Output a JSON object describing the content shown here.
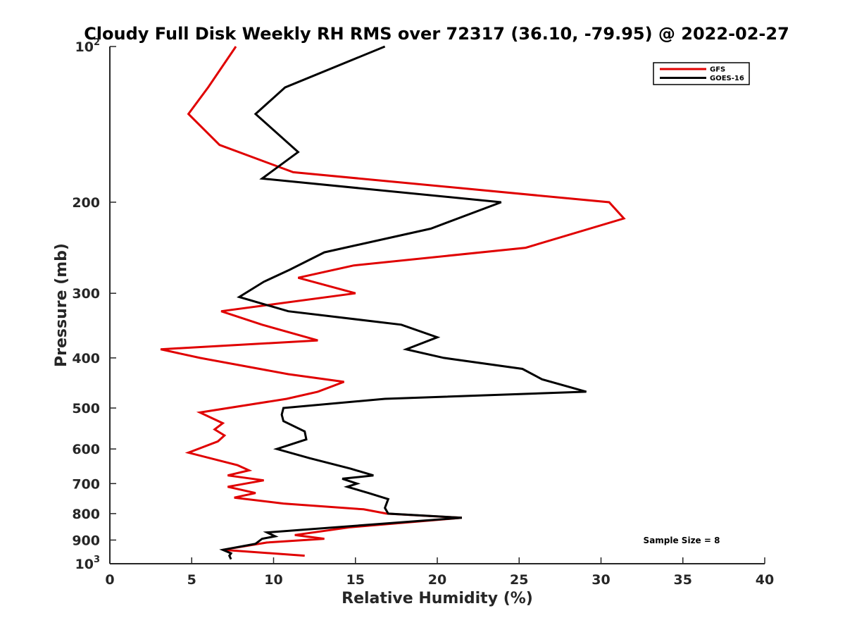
{
  "chart_data": {
    "type": "line",
    "title": "Cloudy Full Disk Weekly RH RMS over 72317 (36.10, -79.95) @ 2022-02-27",
    "xlabel": "Relative Humidity (%)",
    "ylabel": "Pressure (mb)",
    "xlim": [
      0,
      40
    ],
    "ylim": [
      100,
      1000
    ],
    "y_scale": "log",
    "y_reversed": true,
    "grid": false,
    "legend_position": "top-right",
    "x_ticks": [
      "0",
      "5",
      "10",
      "15",
      "20",
      "25",
      "30",
      "35",
      "40"
    ],
    "y_ticks": [
      {
        "value": 100,
        "base": "10",
        "exp": "2"
      },
      {
        "value": 200,
        "label": "200"
      },
      {
        "value": 300,
        "label": "300"
      },
      {
        "value": 400,
        "label": "400"
      },
      {
        "value": 500,
        "label": "500"
      },
      {
        "value": 600,
        "label": "600"
      },
      {
        "value": 700,
        "label": "700"
      },
      {
        "value": 800,
        "label": "800"
      },
      {
        "value": 900,
        "label": "900"
      },
      {
        "value": 1000,
        "base": "10",
        "exp": "3"
      }
    ],
    "annotation": "Sample Size = 8",
    "series": [
      {
        "name": "GFS",
        "color": "#e00000",
        "points": [
          [
            7.7,
            100
          ],
          [
            6.0,
            120
          ],
          [
            4.8,
            135
          ],
          [
            6.7,
            155
          ],
          [
            11.2,
            175
          ],
          [
            30.5,
            200
          ],
          [
            31.4,
            215
          ],
          [
            25.4,
            245
          ],
          [
            14.9,
            265
          ],
          [
            11.5,
            280
          ],
          [
            15.0,
            300
          ],
          [
            6.8,
            325
          ],
          [
            9.3,
            345
          ],
          [
            12.7,
            370
          ],
          [
            3.1,
            385
          ],
          [
            5.5,
            400
          ],
          [
            10.9,
            430
          ],
          [
            14.3,
            445
          ],
          [
            12.7,
            465
          ],
          [
            10.8,
            480
          ],
          [
            5.5,
            510
          ],
          [
            6.9,
            535
          ],
          [
            6.4,
            550
          ],
          [
            7.0,
            565
          ],
          [
            6.6,
            580
          ],
          [
            4.8,
            610
          ],
          [
            7.8,
            645
          ],
          [
            8.5,
            660
          ],
          [
            7.2,
            675
          ],
          [
            9.4,
            690
          ],
          [
            7.2,
            710
          ],
          [
            8.9,
            730
          ],
          [
            7.6,
            745
          ],
          [
            10.6,
            765
          ],
          [
            15.5,
            785
          ],
          [
            16.9,
            800
          ],
          [
            21.5,
            815
          ],
          [
            14.7,
            850
          ],
          [
            11.3,
            880
          ],
          [
            13.1,
            895
          ],
          [
            9.6,
            910
          ],
          [
            6.9,
            940
          ],
          [
            11.9,
            965
          ]
        ]
      },
      {
        "name": "GOES-16",
        "color": "#000000",
        "points": [
          [
            16.8,
            100
          ],
          [
            10.7,
            120
          ],
          [
            8.9,
            135
          ],
          [
            11.5,
            160
          ],
          [
            9.3,
            180
          ],
          [
            23.9,
            200
          ],
          [
            19.6,
            225
          ],
          [
            13.1,
            250
          ],
          [
            11.0,
            270
          ],
          [
            9.4,
            285
          ],
          [
            7.9,
            305
          ],
          [
            10.9,
            325
          ],
          [
            17.8,
            345
          ],
          [
            20.0,
            365
          ],
          [
            18.1,
            385
          ],
          [
            20.4,
            400
          ],
          [
            25.2,
            420
          ],
          [
            26.4,
            440
          ],
          [
            29.1,
            465
          ],
          [
            16.8,
            480
          ],
          [
            10.6,
            500
          ],
          [
            10.5,
            515
          ],
          [
            10.6,
            530
          ],
          [
            11.9,
            555
          ],
          [
            12.0,
            575
          ],
          [
            10.2,
            600
          ],
          [
            12.2,
            625
          ],
          [
            14.7,
            655
          ],
          [
            16.1,
            675
          ],
          [
            14.2,
            685
          ],
          [
            15.1,
            700
          ],
          [
            14.5,
            710
          ],
          [
            15.8,
            730
          ],
          [
            17.0,
            750
          ],
          [
            16.8,
            780
          ],
          [
            17.0,
            800
          ],
          [
            21.5,
            815
          ],
          [
            9.6,
            870
          ],
          [
            10.1,
            885
          ],
          [
            9.3,
            895
          ],
          [
            8.9,
            915
          ],
          [
            6.9,
            940
          ],
          [
            7.4,
            955
          ],
          [
            7.3,
            965
          ],
          [
            7.4,
            980
          ]
        ]
      }
    ]
  }
}
